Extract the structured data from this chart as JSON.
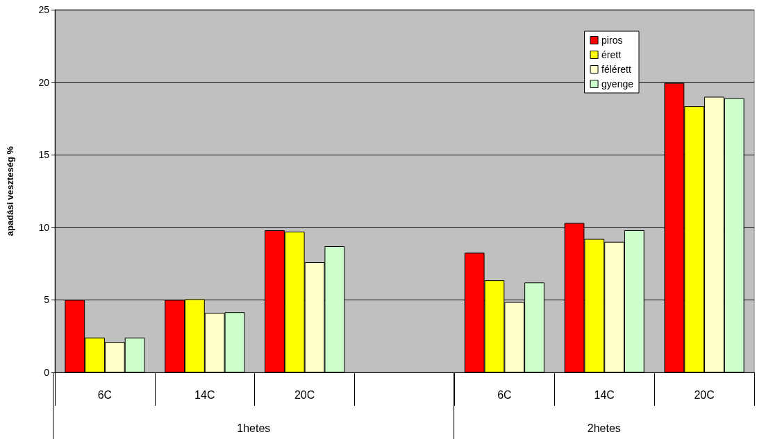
{
  "chart_data": {
    "type": "bar",
    "ylabel": "apadási veszteség %",
    "categories": [
      "6C",
      "14C",
      "20C",
      null,
      "6C",
      "14C",
      "20C"
    ],
    "series": [
      {
        "name": "piros",
        "color": "#ff0000",
        "values": [
          5.0,
          5.0,
          9.8,
          null,
          8.25,
          10.3,
          19.95
        ]
      },
      {
        "name": "érett",
        "color": "#ffff00",
        "values": [
          2.4,
          5.05,
          9.7,
          null,
          6.35,
          9.2,
          18.35
        ]
      },
      {
        "name": "félérett",
        "color": "#ffffcc",
        "values": [
          2.1,
          4.1,
          7.6,
          null,
          4.85,
          9.0,
          19.0
        ]
      },
      {
        "name": "gyenge",
        "color": "#ccffcc",
        "values": [
          2.4,
          4.15,
          8.7,
          null,
          6.2,
          9.8,
          18.9
        ]
      }
    ],
    "annotations": [
      "1hetes",
      "2hetes"
    ],
    "ylim": [
      0,
      25
    ],
    "yticks": [
      0,
      5,
      10,
      15,
      20,
      25
    ],
    "grid": "y",
    "legend": "top right"
  }
}
